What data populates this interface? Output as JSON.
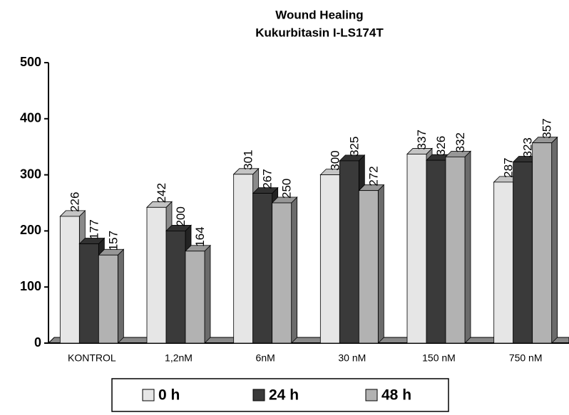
{
  "chart_data": {
    "type": "bar3d",
    "title": "Wound Healing",
    "subtitle": "Kukurbitasin I-LS174T",
    "categories": [
      "KONTROL",
      "1,2nM",
      "6nM",
      "30 nM",
      "150 nM",
      "750 nM"
    ],
    "series": [
      {
        "name": "0 h",
        "color": "#e6e6e6",
        "values": [
          226,
          242,
          301,
          300,
          337,
          287
        ]
      },
      {
        "name": "24 h",
        "color": "#3a3a3a",
        "values": [
          177,
          200,
          267,
          325,
          326,
          323
        ]
      },
      {
        "name": "48 h",
        "color": "#b2b2b2",
        "values": [
          157,
          164,
          250,
          272,
          332,
          357
        ]
      }
    ],
    "ylim": [
      0,
      500
    ],
    "yticks": [
      0,
      100,
      200,
      300,
      400,
      500
    ],
    "legend": "bottom"
  }
}
